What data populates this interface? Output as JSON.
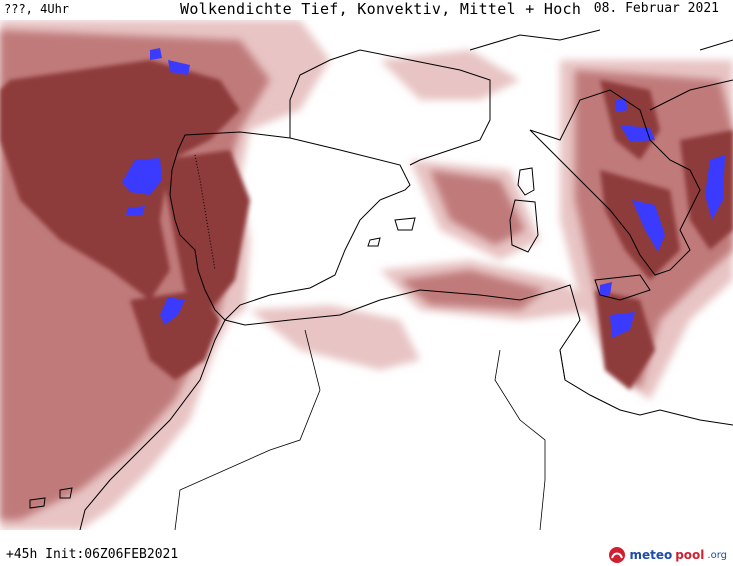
{
  "header": {
    "left": "???, 4Uhr",
    "title": "Wolkendichte  Tief, Konvektiv, Mittel + Hoch",
    "date": "08. Februar 2021"
  },
  "footer": {
    "run": "+45h  Init:06Z06FEB2021",
    "logo_a": "meteo",
    "logo_b": "pool",
    "logo_c": ".org"
  },
  "colors": {
    "cloud_light": "#e8c4c4",
    "cloud_mid": "#c07a7a",
    "cloud_dark": "#8e3a3a",
    "cloud_core": "#6e2626",
    "convective": "#3b3bff",
    "coastline": "#000000"
  }
}
